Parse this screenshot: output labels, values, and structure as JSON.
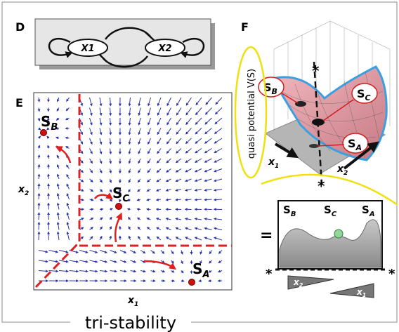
{
  "figure": {
    "caption": "tri-stability",
    "panel_d": {
      "label": "D",
      "nodes": [
        "X1",
        "X2"
      ]
    },
    "panel_e": {
      "label": "E",
      "x_label": {
        "main": "x",
        "sub": "1"
      },
      "y_label": {
        "main": "x",
        "sub": "2"
      },
      "states": [
        {
          "main": "S",
          "sub": "B"
        },
        {
          "main": "S",
          "sub": "C"
        },
        {
          "main": "S",
          "sub": "A"
        }
      ]
    },
    "panel_f": {
      "label": "F",
      "z_label": "quasi potential V(S)",
      "states": [
        {
          "main": "S",
          "sub": "B"
        },
        {
          "main": "S",
          "sub": "C"
        },
        {
          "main": "S",
          "sub": "A"
        }
      ],
      "axes": [
        {
          "main": "x",
          "sub": "1"
        },
        {
          "main": "x",
          "sub": "2"
        }
      ],
      "stars": [
        "*",
        "*"
      ],
      "equals": "=",
      "profile_states": [
        {
          "main": "S",
          "sub": "B"
        },
        {
          "main": "S",
          "sub": "C"
        },
        {
          "main": "S",
          "sub": "A"
        }
      ],
      "profile_stars": [
        "*",
        "*"
      ],
      "wedges": [
        {
          "main": "x",
          "sub": "2"
        },
        {
          "main": "x",
          "sub": "1"
        }
      ]
    }
  }
}
